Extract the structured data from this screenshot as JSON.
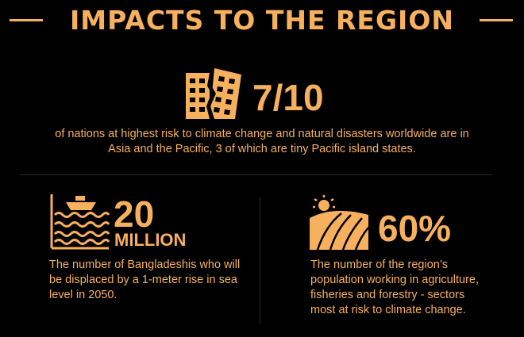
{
  "header": {
    "title": "IMPACTS TO THE REGION"
  },
  "top_stat": {
    "value": "7/10",
    "icon": "collapsing-building-icon",
    "description": "of nations at highest risk to climate change and natural disasters worldwide are in Asia and the Pacific, 3 of which are tiny Pacific island states."
  },
  "left_stat": {
    "value": "20",
    "unit": "MILLION",
    "icon": "flooded-boat-icon",
    "description": "The number of Bangladeshis who will be displaced by a 1-meter rise in sea level in 2050."
  },
  "right_stat": {
    "value": "60%",
    "icon": "farm-field-sun-icon",
    "description": "The number of the region’s population working in agriculture, fisheries and forestry - sectors most at risk to climate change."
  },
  "colors": {
    "accent": "#F7B05E",
    "background": "#000000"
  }
}
